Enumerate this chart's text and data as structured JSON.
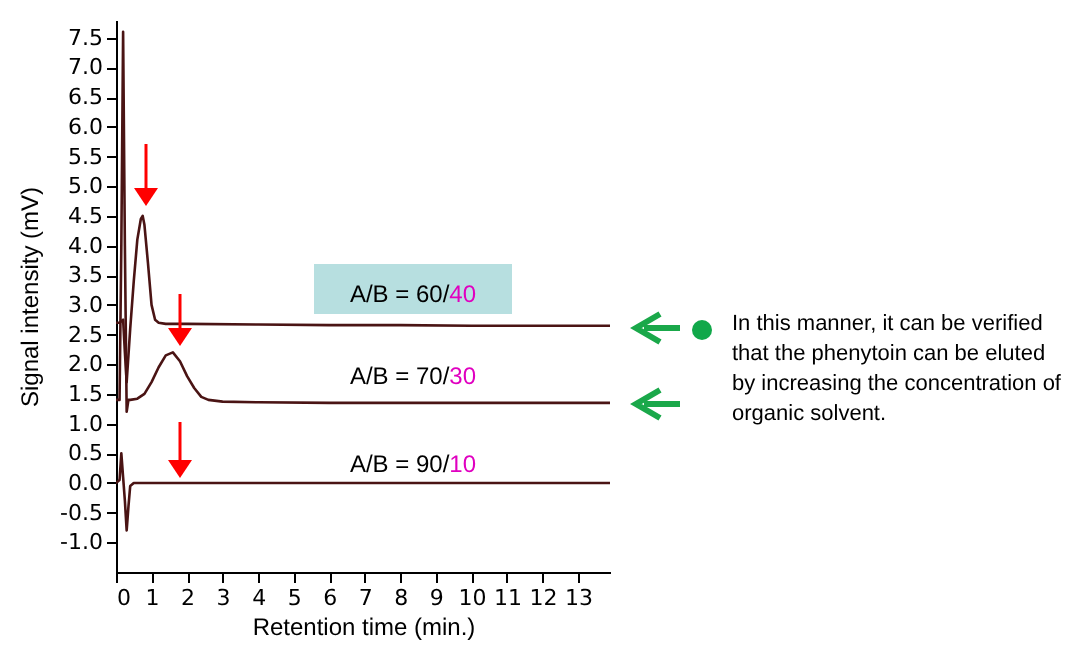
{
  "chart_data": {
    "type": "line",
    "xlabel": "Retention time (min.)",
    "ylabel": "Signal intensity (mV)",
    "xlim": [
      0,
      13.9
    ],
    "xticks": [
      0,
      1,
      2,
      3,
      4,
      5,
      6,
      7,
      8,
      9,
      10,
      11,
      12,
      13
    ],
    "ylim": [
      -1.5,
      7.8
    ],
    "yticks": [
      {
        "value": -1,
        "label": "-1.0"
      },
      -0.5,
      {
        "value": 0,
        "label": "0.0"
      },
      0.5,
      {
        "value": 1,
        "label": "1.0"
      },
      1.5,
      {
        "value": 2,
        "label": "2.0"
      },
      2.5,
      {
        "value": 3,
        "label": "3.0"
      },
      3.5,
      {
        "value": 4,
        "label": "4.0"
      },
      4.5,
      {
        "value": 5,
        "label": "5.0"
      },
      5.5,
      {
        "value": 6,
        "label": "6.0"
      },
      6.5,
      {
        "value": 7,
        "label": "7.0"
      },
      7.5
    ],
    "grid": false,
    "marker": "none",
    "line_style": "solid",
    "series": [
      {
        "color": "#4a1414",
        "x": [
          0,
          0.1,
          0.2,
          0.25,
          0.3,
          0.4,
          0.5,
          0.6,
          0.7,
          0.75,
          0.8,
          0.9,
          1.0,
          1.1,
          1.2,
          1.4,
          2,
          4,
          6,
          8,
          10,
          12,
          13.9
        ],
        "values": [
          2.7,
          2.7,
          2.75,
          2.2,
          1.7,
          2.6,
          3.4,
          4.1,
          4.45,
          4.5,
          4.35,
          3.7,
          3.0,
          2.75,
          2.7,
          2.68,
          2.68,
          2.67,
          2.66,
          2.66,
          2.65,
          2.65,
          2.65
        ]
      },
      {
        "color": "#4a1414",
        "x": [
          0,
          0.1,
          0.15,
          0.2,
          0.25,
          0.3,
          0.35,
          0.4,
          0.6,
          0.8,
          1.0,
          1.2,
          1.4,
          1.6,
          1.8,
          2.0,
          2.2,
          2.4,
          2.6,
          3,
          4,
          6,
          8,
          10,
          12,
          13.9
        ],
        "values": [
          1.4,
          1.4,
          4.0,
          7.6,
          4.0,
          1.2,
          1.4,
          1.4,
          1.42,
          1.5,
          1.7,
          1.95,
          2.15,
          2.2,
          2.05,
          1.8,
          1.6,
          1.45,
          1.4,
          1.37,
          1.36,
          1.35,
          1.35,
          1.35,
          1.35,
          1.35
        ]
      },
      {
        "color": "#4a1414",
        "x": [
          0,
          0.1,
          0.15,
          0.2,
          0.25,
          0.3,
          0.35,
          0.4,
          0.5,
          1,
          2,
          4,
          6,
          8,
          10,
          12,
          13.9
        ],
        "values": [
          0,
          0.05,
          0.5,
          0.1,
          -0.3,
          -0.8,
          -0.4,
          -0.05,
          0,
          0,
          0,
          0,
          0,
          0,
          0,
          0,
          0
        ]
      }
    ],
    "annotations": [
      "A/B = 60/40",
      "A/B = 70/30",
      "A/B = 90/10",
      "In this manner, it can be verified that the phenytoin can be eluted by increasing the concentration of organic solvent."
    ]
  }
}
